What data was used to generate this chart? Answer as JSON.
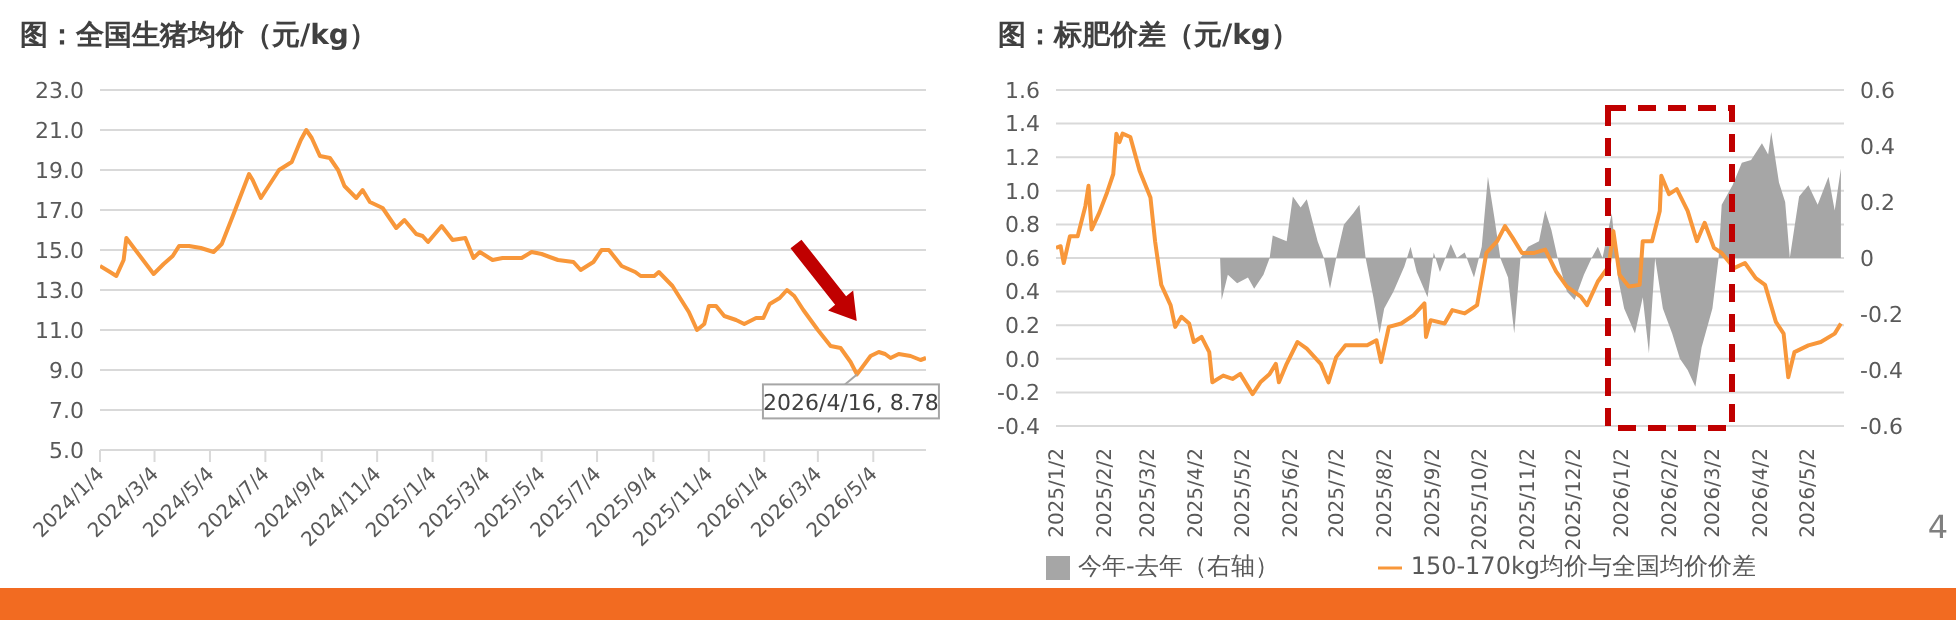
{
  "chart_data": [
    {
      "type": "line",
      "title": "图：全国生猪均价（元/kg）",
      "color": "#f8973a",
      "grid": "y",
      "x": [
        "2024-01-04",
        "2024-01-15",
        "2024-01-22",
        "2024-01-30",
        "2024-02-02",
        "2024-03-03",
        "2024-03-14",
        "2024-03-24",
        "2024-03-31",
        "2024-04-11",
        "2024-04-24",
        "2024-05-08",
        "2024-05-17",
        "2024-05-30",
        "2024-06-16",
        "2024-06-20",
        "2024-06-29",
        "2024-07-19",
        "2024-08-02",
        "2024-08-12",
        "2024-08-18",
        "2024-08-24",
        "2024-09-02",
        "2024-09-13",
        "2024-09-22",
        "2024-09-29",
        "2024-10-12",
        "2024-10-19",
        "2024-10-27",
        "2024-11-10",
        "2024-11-25",
        "2024-12-04",
        "2024-12-17",
        "2024-12-24",
        "2024-12-30",
        "2025-01-14",
        "2025-01-26",
        "2025-02-09",
        "2025-02-18",
        "2025-02-25",
        "2025-03-11",
        "2025-03-22",
        "2025-04-12",
        "2025-04-23",
        "2025-05-04",
        "2025-05-22",
        "2025-06-08",
        "2025-06-16",
        "2025-06-30",
        "2025-07-09",
        "2025-07-17",
        "2025-07-31",
        "2025-08-15",
        "2025-08-21",
        "2025-09-05",
        "2025-09-10",
        "2025-09-25",
        "2025-10-13",
        "2025-10-22",
        "2025-10-30",
        "2025-11-04",
        "2025-11-12",
        "2025-11-21",
        "2025-12-04",
        "2025-12-13",
        "2025-12-26",
        "2026-01-03",
        "2026-01-10",
        "2026-01-21",
        "2026-01-29",
        "2026-02-06",
        "2026-02-16",
        "2026-03-04",
        "2026-03-18",
        "2026-03-29",
        "2026-04-09",
        "2026-04-16",
        "2026-05-01",
        "2026-05-10",
        "2026-05-17",
        "2026-05-23",
        "2026-06-01",
        "2026-06-14",
        "2026-06-25",
        "2026-07-01"
      ],
      "values": [
        14.2,
        13.9,
        13.7,
        14.5,
        15.6,
        13.8,
        14.3,
        14.7,
        15.2,
        15.2,
        15.1,
        14.9,
        15.3,
        16.8,
        18.8,
        18.5,
        17.6,
        19.0,
        19.4,
        20.5,
        21.0,
        20.6,
        19.7,
        19.6,
        19.0,
        18.2,
        17.6,
        18.0,
        17.4,
        17.1,
        16.1,
        16.5,
        15.8,
        15.7,
        15.4,
        16.2,
        15.5,
        15.6,
        14.6,
        14.9,
        14.5,
        14.6,
        14.6,
        14.9,
        14.8,
        14.5,
        14.4,
        14.0,
        14.4,
        15.0,
        15.0,
        14.2,
        13.9,
        13.7,
        13.7,
        13.9,
        13.2,
        11.9,
        11.0,
        11.3,
        12.2,
        12.2,
        11.7,
        11.5,
        11.3,
        11.6,
        11.6,
        12.3,
        12.6,
        13.0,
        12.7,
        12.0,
        11.0,
        10.2,
        10.1,
        9.4,
        8.78,
        9.7,
        9.9,
        9.8,
        9.6,
        9.8,
        9.7,
        9.5,
        9.6
      ],
      "xlim": [
        "2024-01-04",
        "2026-07-01"
      ],
      "xticks": [
        {
          "value": "2024-01-04",
          "label": "2024/1/4"
        },
        {
          "value": "2024-03-04",
          "label": "2024/3/4"
        },
        {
          "value": "2024-05-04",
          "label": "2024/5/4"
        },
        {
          "value": "2024-07-04",
          "label": "2024/7/4"
        },
        {
          "value": "2024-09-04",
          "label": "2024/9/4"
        },
        {
          "value": "2024-11-04",
          "label": "2024/11/4"
        },
        {
          "value": "2025-01-04",
          "label": "2025/1/4"
        },
        {
          "value": "2025-03-04",
          "label": "2025/3/4"
        },
        {
          "value": "2025-05-04",
          "label": "2025/5/4"
        },
        {
          "value": "2025-07-04",
          "label": "2025/7/4"
        },
        {
          "value": "2025-09-04",
          "label": "2025/9/4"
        },
        {
          "value": "2025-11-04",
          "label": "2025/11/4"
        },
        {
          "value": "2026-01-04",
          "label": "2026/1/4"
        },
        {
          "value": "2026-03-04",
          "label": "2026/3/4"
        },
        {
          "value": "2026-05-04",
          "label": "2026/5/4"
        }
      ],
      "ylim": [
        5,
        23
      ],
      "yticks": [
        {
          "value": 5,
          "label": "5.0"
        },
        {
          "value": 7,
          "label": "7.0"
        },
        {
          "value": 9,
          "label": "9.0"
        },
        {
          "value": 11,
          "label": "11.0"
        },
        {
          "value": 13,
          "label": "13.0"
        },
        {
          "value": 15,
          "label": "15.0"
        },
        {
          "value": 17,
          "label": "17.0"
        },
        {
          "value": 19,
          "label": "19.0"
        },
        {
          "value": 21,
          "label": "21.0"
        },
        {
          "value": 23,
          "label": "23.0"
        }
      ],
      "annotations": [
        {
          "text": "2026/4/16, 8.78",
          "x": "2026-04-16",
          "y": 8.78
        }
      ]
    },
    {
      "type": "line",
      "title": "图：标肥价差（元/kg）",
      "grid": "y",
      "legend": "bottom",
      "xlim": [
        "2025-01-02",
        "2026-05-26"
      ],
      "xticks": [
        {
          "value": "2025-01-02",
          "label": "2025/1/2"
        },
        {
          "value": "2025-02-02",
          "label": "2025/2/2"
        },
        {
          "value": "2025-03-02",
          "label": "2025/3/2"
        },
        {
          "value": "2025-04-02",
          "label": "2025/4/2"
        },
        {
          "value": "2025-05-02",
          "label": "2025/5/2"
        },
        {
          "value": "2025-06-02",
          "label": "2025/6/2"
        },
        {
          "value": "2025-07-02",
          "label": "2025/7/2"
        },
        {
          "value": "2025-08-02",
          "label": "2025/8/2"
        },
        {
          "value": "2025-09-02",
          "label": "2025/9/2"
        },
        {
          "value": "2025-10-02",
          "label": "2025/10/2"
        },
        {
          "value": "2025-11-02",
          "label": "2025/11/2"
        },
        {
          "value": "2025-12-02",
          "label": "2025/12/2"
        },
        {
          "value": "2026-01-02",
          "label": "2026/1/2"
        },
        {
          "value": "2026-02-02",
          "label": "2026/2/2"
        },
        {
          "value": "2026-03-02",
          "label": "2026/3/2"
        },
        {
          "value": "2026-04-02",
          "label": "2026/4/2"
        },
        {
          "value": "2026-05-02",
          "label": "2026/5/2"
        }
      ],
      "ylim": [
        -0.4,
        1.6
      ],
      "yticks": [
        -0.4,
        -0.2,
        {
          "value": 0,
          "label": "0.0"
        },
        0.2,
        0.4,
        0.6,
        0.8,
        {
          "value": 1,
          "label": "1.0"
        },
        1.2,
        1.4,
        1.6
      ],
      "y2lim": [
        -0.6,
        0.6
      ],
      "y2ticks": [
        -0.6,
        -0.4,
        -0.2,
        0,
        0.2,
        0.4,
        0.6
      ],
      "annotations": [
        "4"
      ],
      "series": [
        {
          "name": "今年-去年（右轴）",
          "type": "area",
          "axis": "y2",
          "color": "#a6a6a6",
          "x": [
            "2025-04-18",
            "2025-04-19",
            "2025-04-23",
            "2025-04-29",
            "2025-05-06",
            "2025-05-10",
            "2025-05-16",
            "2025-05-20",
            "2025-05-22",
            "2025-05-31",
            "2025-06-04",
            "2025-06-09",
            "2025-06-13",
            "2025-06-20",
            "2025-06-24",
            "2025-06-28",
            "2025-07-02",
            "2025-07-07",
            "2025-07-13",
            "2025-07-17",
            "2025-07-21",
            "2025-07-26",
            "2025-07-30",
            "2025-08-02",
            "2025-08-08",
            "2025-08-15",
            "2025-08-19",
            "2025-08-23",
            "2025-08-30",
            "2025-09-03",
            "2025-09-07",
            "2025-09-14",
            "2025-09-18",
            "2025-09-23",
            "2025-09-29",
            "2025-10-04",
            "2025-10-08",
            "2025-10-12",
            "2025-10-16",
            "2025-10-21",
            "2025-10-25",
            "2025-10-29",
            "2025-11-03",
            "2025-11-10",
            "2025-11-14",
            "2025-11-18",
            "2025-11-22",
            "2025-11-28",
            "2025-12-03",
            "2025-12-09",
            "2025-12-14",
            "2025-12-18",
            "2025-12-21",
            "2025-12-27",
            "2025-12-31",
            "2026-01-04",
            "2026-01-11",
            "2026-01-16",
            "2026-01-20",
            "2026-01-24",
            "2026-01-29",
            "2026-02-04",
            "2026-02-09",
            "2026-02-14",
            "2026-02-19",
            "2026-02-23",
            "2026-03-02",
            "2026-03-06",
            "2026-03-08",
            "2026-03-15",
            "2026-03-21",
            "2026-03-27",
            "2026-04-03",
            "2026-04-07",
            "2026-04-09",
            "2026-04-14",
            "2026-04-18",
            "2026-04-21",
            "2026-04-27",
            "2026-05-03",
            "2026-05-09",
            "2026-05-16",
            "2026-05-20",
            "2026-05-24"
          ],
          "values": [
            0,
            -0.15,
            -0.06,
            -0.09,
            -0.07,
            -0.11,
            -0.06,
            0,
            0.08,
            0.06,
            0.22,
            0.18,
            0.21,
            0.06,
            0,
            -0.11,
            0,
            0.12,
            0.16,
            0.19,
            0,
            -0.14,
            -0.27,
            -0.18,
            -0.12,
            -0.03,
            0.04,
            -0.05,
            -0.14,
            0.02,
            -0.05,
            0.05,
            0,
            0.02,
            -0.07,
            0.04,
            0.29,
            0.15,
            0,
            -0.07,
            -0.27,
            0,
            0.04,
            0.06,
            0.17,
            0.1,
            0,
            -0.12,
            -0.15,
            -0.06,
            0,
            0.04,
            0,
            0.16,
            -0.07,
            -0.18,
            -0.27,
            -0.14,
            -0.34,
            0,
            -0.18,
            -0.27,
            -0.36,
            -0.4,
            -0.46,
            -0.32,
            -0.18,
            0,
            0.19,
            0.26,
            0.34,
            0.35,
            0.41,
            0.37,
            0.45,
            0.27,
            0.2,
            0,
            0.22,
            0.26,
            0.19,
            0.29,
            0.17,
            0.32
          ]
        },
        {
          "name": "150-170kg均价与全国均价价差",
          "type": "line",
          "color": "#f8973a",
          "x": [
            "2025-01-02",
            "2025-01-05",
            "2025-01-07",
            "2025-01-11",
            "2025-01-16",
            "2025-01-21",
            "2025-01-23",
            "2025-01-25",
            "2025-01-30",
            "2025-02-04",
            "2025-02-08",
            "2025-02-10",
            "2025-02-12",
            "2025-02-14",
            "2025-02-19",
            "2025-02-25",
            "2025-03-04",
            "2025-03-07",
            "2025-03-11",
            "2025-03-17",
            "2025-03-20",
            "2025-03-24",
            "2025-03-29",
            "2025-04-01",
            "2025-04-06",
            "2025-04-11",
            "2025-04-13",
            "2025-04-20",
            "2025-04-26",
            "2025-05-01",
            "2025-05-09",
            "2025-05-14",
            "2025-05-20",
            "2025-05-24",
            "2025-05-26",
            "2025-05-31",
            "2025-06-07",
            "2025-06-13",
            "2025-06-22",
            "2025-06-27",
            "2025-07-02",
            "2025-07-08",
            "2025-07-16",
            "2025-07-22",
            "2025-07-28",
            "2025-07-31",
            "2025-08-05",
            "2025-08-13",
            "2025-08-21",
            "2025-08-28",
            "2025-08-29",
            "2025-09-01",
            "2025-09-10",
            "2025-09-15",
            "2025-09-23",
            "2025-10-01",
            "2025-10-07",
            "2025-10-14",
            "2025-10-19",
            "2025-10-24",
            "2025-10-30",
            "2025-11-07",
            "2025-11-14",
            "2025-11-21",
            "2025-11-28",
            "2025-12-07",
            "2025-12-11",
            "2025-12-18",
            "2025-12-25",
            "2025-12-28",
            "2026-01-01",
            "2026-01-07",
            "2026-01-14",
            "2026-01-16",
            "2026-01-22",
            "2026-01-27",
            "2026-01-28",
            "2026-02-02",
            "2026-02-07",
            "2026-02-14",
            "2026-02-20",
            "2026-02-25",
            "2026-03-03",
            "2026-03-08",
            "2026-03-16",
            "2026-03-23",
            "2026-03-30",
            "2026-04-05",
            "2026-04-12",
            "2026-04-17",
            "2026-04-20",
            "2026-04-24",
            "2026-05-03",
            "2026-05-11",
            "2026-05-20",
            "2026-05-24"
          ],
          "values": [
            0.66,
            0.67,
            0.57,
            0.73,
            0.73,
            0.91,
            1.03,
            0.77,
            0.87,
            0.99,
            1.1,
            1.34,
            1.29,
            1.34,
            1.32,
            1.12,
            0.96,
            0.7,
            0.44,
            0.32,
            0.19,
            0.25,
            0.21,
            0.1,
            0.13,
            0.04,
            -0.14,
            -0.1,
            -0.12,
            -0.09,
            -0.21,
            -0.14,
            -0.09,
            -0.03,
            -0.14,
            -0.03,
            0.1,
            0.06,
            -0.03,
            -0.14,
            0.01,
            0.08,
            0.08,
            0.08,
            0.11,
            -0.02,
            0.19,
            0.21,
            0.26,
            0.33,
            0.13,
            0.23,
            0.21,
            0.29,
            0.27,
            0.32,
            0.63,
            0.7,
            0.79,
            0.72,
            0.63,
            0.63,
            0.65,
            0.52,
            0.43,
            0.37,
            0.32,
            0.46,
            0.55,
            0.76,
            0.5,
            0.43,
            0.44,
            0.7,
            0.7,
            0.88,
            1.09,
            0.98,
            1.01,
            0.88,
            0.7,
            0.81,
            0.66,
            0.63,
            0.54,
            0.57,
            0.48,
            0.44,
            0.22,
            0.15,
            -0.11,
            0.04,
            0.08,
            0.1,
            0.15,
            0.21
          ]
        }
      ]
    }
  ]
}
